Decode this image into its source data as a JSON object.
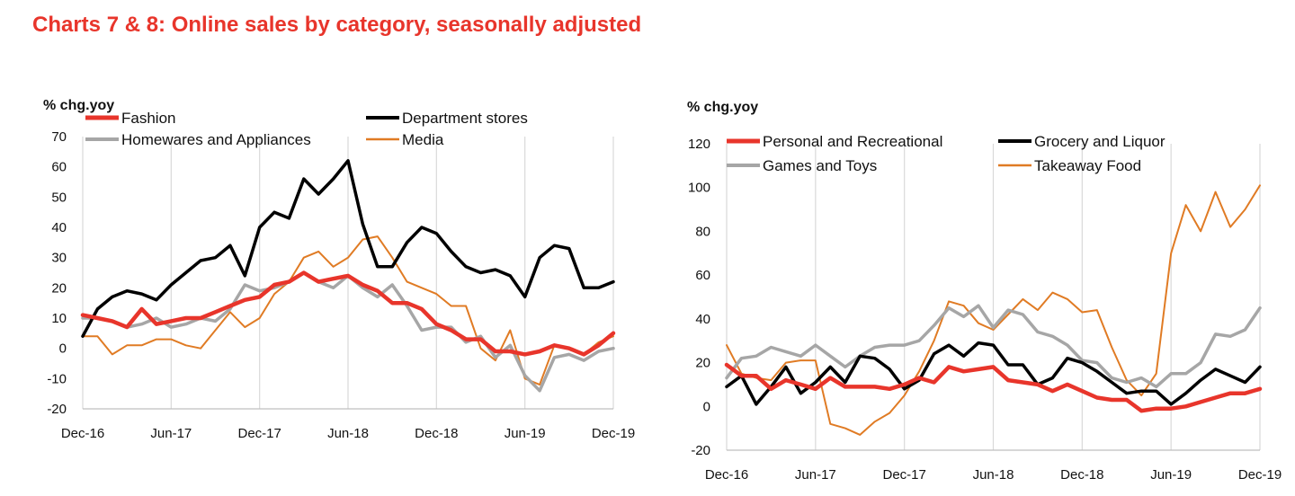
{
  "page": {
    "title": "Charts 7 & 8: Online sales by category, seasonally adjusted"
  },
  "colors": {
    "red": "#e8352b",
    "black": "#000000",
    "grey": "#a6a6a6",
    "orange": "#e07b24",
    "grid": "#d9d9d9"
  },
  "chart_data": [
    {
      "type": "line",
      "ylabel": "% chg.yoy",
      "ylim": [
        -20,
        70
      ],
      "yticks": [
        -20,
        -10,
        0,
        10,
        20,
        30,
        40,
        50,
        60,
        70
      ],
      "xlim": [
        0,
        36
      ],
      "xticks": [
        {
          "i": 0,
          "label": "Dec-16"
        },
        {
          "i": 6,
          "label": "Jun-17"
        },
        {
          "i": 12,
          "label": "Dec-17"
        },
        {
          "i": 18,
          "label": "Jun-18"
        },
        {
          "i": 24,
          "label": "Dec-18"
        },
        {
          "i": 30,
          "label": "Jun-19"
        },
        {
          "i": 36,
          "label": "Dec-19"
        }
      ],
      "grid": "vertical",
      "legend": "top",
      "series": [
        {
          "name": "Fashion",
          "color": "#e8352b",
          "width": 4.5,
          "values": [
            11,
            10,
            9,
            7,
            13,
            8,
            9,
            10,
            10,
            12,
            14,
            16,
            17,
            21,
            22,
            25,
            22,
            23,
            24,
            21,
            19,
            15,
            15,
            13,
            8,
            6,
            3,
            3,
            -1,
            -1,
            -2,
            -1,
            1,
            0,
            -2,
            1,
            5
          ]
        },
        {
          "name": "Department stores",
          "color": "#000000",
          "width": 3.5,
          "values": [
            4,
            13,
            17,
            19,
            18,
            16,
            21,
            25,
            29,
            30,
            34,
            24,
            40,
            45,
            43,
            56,
            51,
            56,
            62,
            41,
            27,
            27,
            35,
            40,
            38,
            32,
            27,
            25,
            26,
            24,
            17,
            30,
            34,
            33,
            20,
            20,
            22
          ]
        },
        {
          "name": "Homewares and Appliances",
          "color": "#a6a6a6",
          "width": 3.5,
          "values": [
            10,
            10,
            9,
            7,
            8,
            10,
            7,
            8,
            10,
            9,
            13,
            21,
            19,
            20,
            22,
            25,
            22,
            20,
            24,
            20,
            17,
            21,
            14,
            6,
            7,
            7,
            2,
            4,
            -3,
            1,
            -9,
            -14,
            -3,
            -2,
            -4,
            -1,
            0
          ]
        },
        {
          "name": "Media",
          "color": "#e07b24",
          "width": 2,
          "values": [
            4,
            4,
            -2,
            1,
            1,
            3,
            3,
            1,
            0,
            6,
            12,
            7,
            10,
            18,
            22,
            30,
            32,
            27,
            30,
            36,
            37,
            30,
            22,
            20,
            18,
            14,
            14,
            0,
            -4,
            6,
            -10,
            -12,
            1,
            0,
            -2,
            2,
            4
          ]
        }
      ]
    },
    {
      "type": "line",
      "ylabel": "% chg.yoy",
      "ylim": [
        -20,
        120
      ],
      "yticks": [
        -20,
        0,
        20,
        40,
        60,
        80,
        100,
        120
      ],
      "xlim": [
        0,
        36
      ],
      "xticks": [
        {
          "i": 0,
          "label": "Dec-16"
        },
        {
          "i": 6,
          "label": "Jun-17"
        },
        {
          "i": 12,
          "label": "Dec-17"
        },
        {
          "i": 18,
          "label": "Jun-18"
        },
        {
          "i": 24,
          "label": "Dec-18"
        },
        {
          "i": 30,
          "label": "Jun-19"
        },
        {
          "i": 36,
          "label": "Dec-19"
        }
      ],
      "grid": "vertical",
      "legend": "top",
      "series": [
        {
          "name": "Personal and Recreational",
          "color": "#e8352b",
          "width": 4.5,
          "values": [
            19,
            14,
            14,
            8,
            12,
            10,
            8,
            13,
            9,
            9,
            9,
            8,
            10,
            13,
            11,
            18,
            16,
            17,
            18,
            12,
            11,
            10,
            7,
            10,
            7,
            4,
            3,
            3,
            -2,
            -1,
            -1,
            0,
            2,
            4,
            6,
            6,
            8
          ]
        },
        {
          "name": "Grocery and Liquor",
          "color": "#000000",
          "width": 3.5,
          "values": [
            9,
            14,
            1,
            9,
            18,
            6,
            11,
            18,
            11,
            23,
            22,
            17,
            8,
            12,
            24,
            28,
            23,
            29,
            28,
            19,
            19,
            10,
            13,
            22,
            20,
            16,
            11,
            6,
            7,
            7,
            1,
            6,
            12,
            17,
            14,
            11,
            18
          ]
        },
        {
          "name": "Games and Toys",
          "color": "#a6a6a6",
          "width": 3.5,
          "values": [
            13,
            22,
            23,
            27,
            25,
            23,
            28,
            23,
            18,
            23,
            27,
            28,
            28,
            30,
            37,
            45,
            41,
            46,
            36,
            44,
            42,
            34,
            32,
            28,
            21,
            20,
            13,
            11,
            13,
            9,
            15,
            15,
            20,
            33,
            32,
            35,
            45
          ]
        },
        {
          "name": "Takeaway Food",
          "color": "#e07b24",
          "width": 2,
          "values": [
            28,
            15,
            13,
            12,
            20,
            21,
            21,
            -8,
            -10,
            -13,
            -7,
            -3,
            5,
            16,
            30,
            48,
            46,
            38,
            35,
            42,
            49,
            44,
            52,
            49,
            43,
            44,
            27,
            12,
            5,
            15,
            70,
            92,
            80,
            98,
            82,
            90,
            101
          ]
        }
      ]
    }
  ]
}
